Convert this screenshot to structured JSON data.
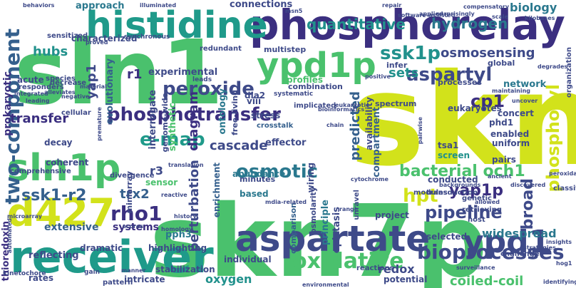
{
  "title": "",
  "words": [
    {
      "text": "skn7",
      "color": "#d2e21b"
    },
    {
      "text": "skn7p",
      "color": "#4ac16d"
    },
    {
      "text": "sln1",
      "color": "#4ac16d"
    },
    {
      "text": "phosphorelay",
      "color": "#3b2f80"
    },
    {
      "text": "receiver",
      "color": "#1f9a8a"
    },
    {
      "text": "histidine",
      "color": "#1f9a8a"
    },
    {
      "text": "sln1p",
      "color": "#4ac16d"
    },
    {
      "text": "aspartate",
      "color": "#3e4a89"
    },
    {
      "text": "ypd1p",
      "color": "#4ac16d"
    },
    {
      "text": "ypd1",
      "color": "#3e4a89"
    },
    {
      "text": "d427",
      "color": "#d2e21b"
    },
    {
      "text": "two-component",
      "color": "#35608d"
    },
    {
      "text": "phosphotransfer",
      "color": "#3b2f80"
    },
    {
      "text": "oxidative",
      "color": "#4ac16d"
    },
    {
      "text": "bioprocesses",
      "color": "#3e4a89"
    },
    {
      "text": "osmotic",
      "color": "#2a788e"
    },
    {
      "text": "aspartyl",
      "color": "#3e4a89"
    },
    {
      "text": "peroxide",
      "color": "#3e4a89"
    },
    {
      "text": "ssk1-r2",
      "color": "#35608d"
    },
    {
      "text": "ssk1p",
      "color": "#21918c"
    },
    {
      "text": "osmosensing",
      "color": "#3e4a89"
    },
    {
      "text": "bacterial och1",
      "color": "#4ac16d"
    },
    {
      "text": "pipeline",
      "color": "#3e4a89"
    },
    {
      "text": "yap1p",
      "color": "#3b2f80"
    },
    {
      "text": "e-map",
      "color": "#1f9a8a"
    },
    {
      "text": "rho1",
      "color": "#3b2f80"
    },
    {
      "text": "hpt",
      "color": "#d2e21b"
    },
    {
      "text": "trx2",
      "color": "#35608d"
    },
    {
      "text": "cascade",
      "color": "#3e4a89"
    },
    {
      "text": "quantitative",
      "color": "#21918c"
    },
    {
      "text": "hydrogen",
      "color": "#2a788e"
    },
    {
      "text": "biology",
      "color": "#2a788e"
    },
    {
      "text": "hubs",
      "color": "#21918c"
    },
    {
      "text": "yap1",
      "color": "#3e4a89"
    },
    {
      "text": "transfer",
      "color": "#3b2f80"
    },
    {
      "text": "predicted",
      "color": "#35608d"
    },
    {
      "text": "phosphoryl",
      "color": "#d2e21b"
    },
    {
      "text": "broad",
      "color": "#3e4a89"
    },
    {
      "text": "widespread",
      "color": "#2a788e"
    },
    {
      "text": "coiled-coil",
      "color": "#4ac16d"
    },
    {
      "text": "redox",
      "color": "#3e4a89"
    },
    {
      "text": "oxygen",
      "color": "#21918c"
    },
    {
      "text": "perturbation",
      "color": "#3e4a89"
    },
    {
      "text": "diagram",
      "color": "#3b2f80"
    },
    {
      "text": "sets",
      "color": "#21918c"
    },
    {
      "text": "cp1",
      "color": "#3b2f80"
    },
    {
      "text": "r1",
      "color": "#3b2f80"
    },
    {
      "text": "r3",
      "color": "#3e4a89"
    },
    {
      "text": "approach",
      "color": "#2a788e"
    },
    {
      "text": "connections",
      "color": "#3e4a89"
    },
    {
      "text": "network",
      "color": "#2a788e"
    },
    {
      "text": "prokaryotic",
      "color": "#3b2f80"
    },
    {
      "text": "thioredoxin",
      "color": "#3b2f80"
    },
    {
      "text": "characterized",
      "color": "#3e4a89"
    },
    {
      "text": "experimental",
      "color": "#3e4a89"
    },
    {
      "text": "evolutionary",
      "color": "#35608d"
    },
    {
      "text": "interrogate",
      "color": "#3e4a89"
    },
    {
      "text": "synthetic",
      "color": "#4ac16d"
    },
    {
      "text": "genome-wide",
      "color": "#3e4a89"
    },
    {
      "text": "ontology",
      "color": "#2a788e"
    },
    {
      "text": "free-living",
      "color": "#3e4a89"
    },
    {
      "text": "extensive",
      "color": "#35608d"
    },
    {
      "text": "systems",
      "color": "#3b2f80"
    },
    {
      "text": "pph3",
      "color": "#2a788e"
    },
    {
      "text": "miniarray",
      "color": "#3e4a89"
    },
    {
      "text": "highlighting",
      "color": "#3e4a89"
    },
    {
      "text": "enrichment",
      "color": "#35608d"
    },
    {
      "text": "intricate",
      "color": "#3e4a89"
    },
    {
      "text": "stabilization",
      "color": "#3e4a89"
    },
    {
      "text": "individual",
      "color": "#3e4a89"
    },
    {
      "text": "epistasis",
      "color": "#3e4a89"
    },
    {
      "text": "principle",
      "color": "#2a788e"
    },
    {
      "text": "wiring",
      "color": "#3e4a89"
    },
    {
      "text": "osmolarity",
      "color": "#3e4a89"
    },
    {
      "text": "comparison",
      "color": "#35608d"
    },
    {
      "text": "minutes",
      "color": "#3e4a89"
    },
    {
      "text": "based",
      "color": "#2a788e"
    },
    {
      "text": "abundance",
      "color": "#2a788e"
    },
    {
      "text": "effector",
      "color": "#3e4a89"
    },
    {
      "text": "stress",
      "color": "#3e4a89"
    },
    {
      "text": "crosstalk",
      "color": "#35608d"
    },
    {
      "text": "viii",
      "color": "#3e4a89"
    },
    {
      "text": "dia2",
      "color": "#3e4a89"
    },
    {
      "text": "compartment",
      "color": "#35608d"
    },
    {
      "text": "availability",
      "color": "#3e4a89"
    },
    {
      "text": "eukaryotes",
      "color": "#3e4a89"
    },
    {
      "text": "phd1",
      "color": "#3e4a89"
    },
    {
      "text": "concert",
      "color": "#3e4a89"
    },
    {
      "text": "enabled",
      "color": "#3e4a89"
    },
    {
      "text": "uniform",
      "color": "#3e4a89"
    },
    {
      "text": "pairs",
      "color": "#3e4a89"
    },
    {
      "text": "screen",
      "color": "#21918c"
    },
    {
      "text": "tsa1",
      "color": "#3e4a89"
    },
    {
      "text": "conducted",
      "color": "#3e4a89"
    },
    {
      "text": "project",
      "color": "#3e4a89"
    },
    {
      "text": "selected",
      "color": "#3e4a89"
    },
    {
      "text": "potential",
      "color": "#3e4a89"
    },
    {
      "text": "profiles",
      "color": "#4ac16d"
    },
    {
      "text": "combination",
      "color": "#3e4a89"
    },
    {
      "text": "processes",
      "color": "#3e4a89"
    },
    {
      "text": "global",
      "color": "#3e4a89"
    },
    {
      "text": "spectrum",
      "color": "#3e4a89"
    },
    {
      "text": "infer",
      "color": "#3e4a89"
    },
    {
      "text": "multistep",
      "color": "#3e4a89"
    },
    {
      "text": "systematic",
      "color": "#3e4a89"
    },
    {
      "text": "sensor",
      "color": "#4ac16d"
    },
    {
      "text": "coherent",
      "color": "#3e4a89"
    },
    {
      "text": "comprehensive",
      "color": "#3e4a89"
    },
    {
      "text": "acute",
      "color": "#3e4a89"
    },
    {
      "text": "reflecting",
      "color": "#3e4a89"
    },
    {
      "text": "dramatic",
      "color": "#3e4a89"
    },
    {
      "text": "rates",
      "color": "#3e4a89"
    },
    {
      "text": "decay",
      "color": "#3e4a89"
    },
    {
      "text": "sensitized",
      "color": "#3e4a89"
    },
    {
      "text": "organization",
      "color": "#3e4a89"
    },
    {
      "text": "challenge",
      "color": "#3e4a89"
    },
    {
      "text": "retrieving",
      "color": "#3e4a89"
    },
    {
      "text": "host",
      "color": "#3e4a89"
    },
    {
      "text": "genetic",
      "color": "#3e4a89"
    },
    {
      "text": "classified",
      "color": "#3e4a89"
    },
    {
      "text": "reactions",
      "color": "#3e4a89"
    },
    {
      "text": "modules",
      "color": "#3e4a89"
    },
    {
      "text": "transduction",
      "color": "#3e4a89"
    },
    {
      "text": "divergence",
      "color": "#3e4a89"
    },
    {
      "text": "cellular",
      "color": "#3e4a89"
    },
    {
      "text": "responders",
      "color": "#3e4a89"
    },
    {
      "text": "decrease",
      "color": "#3e4a89"
    },
    {
      "text": "species",
      "color": "#3e4a89"
    },
    {
      "text": "redundant",
      "color": "#3e4a89"
    },
    {
      "text": "synchronous",
      "color": "#3e4a89"
    },
    {
      "text": "kinetochore",
      "color": "#3e4a89"
    },
    {
      "text": "pattern",
      "color": "#3e4a89"
    },
    {
      "text": "implicated",
      "color": "#3e4a89"
    },
    {
      "text": "leads",
      "color": "#3e4a89"
    },
    {
      "text": "gain",
      "color": "#3e4a89"
    },
    {
      "text": "behaviors",
      "color": "#3e4a89"
    },
    {
      "text": "illuminated",
      "color": "#3e4a89"
    },
    {
      "text": "repair",
      "color": "#3e4a89"
    },
    {
      "text": "compensatory",
      "color": "#3e4a89"
    },
    {
      "text": "kilobases",
      "color": "#3e4a89"
    },
    {
      "text": "scale",
      "color": "#3e4a89"
    },
    {
      "text": "software-assisted",
      "color": "#3e4a89"
    },
    {
      "text": "applied",
      "color": "#3e4a89"
    },
    {
      "text": "surprisingly",
      "color": "#3e4a89"
    },
    {
      "text": "msn5",
      "color": "#3e4a89"
    },
    {
      "text": "proved",
      "color": "#3e4a89"
    },
    {
      "text": "integrated",
      "color": "#3e4a89"
    },
    {
      "text": "alleviates",
      "color": "#3e4a89"
    },
    {
      "text": "negative",
      "color": "#3e4a89"
    },
    {
      "text": "material",
      "color": "#3e4a89"
    },
    {
      "text": "leading",
      "color": "#3e4a89"
    },
    {
      "text": "premature",
      "color": "#3e4a89"
    },
    {
      "text": "degrades",
      "color": "#3e4a89"
    },
    {
      "text": "pairwise",
      "color": "#3e4a89"
    },
    {
      "text": "ancient",
      "color": "#3e4a89"
    },
    {
      "text": "discovered",
      "color": "#3e4a89"
    },
    {
      "text": "unravel",
      "color": "#3e4a89"
    },
    {
      "text": "translation",
      "color": "#3e4a89"
    },
    {
      "text": "reactive",
      "color": "#3e4a89"
    },
    {
      "text": "history",
      "color": "#3e4a89"
    },
    {
      "text": "scores",
      "color": "#3e4a89"
    },
    {
      "text": "homology",
      "color": "#3e4a89"
    },
    {
      "text": "mdia-related",
      "color": "#3e4a89"
    },
    {
      "text": "range",
      "color": "#3e4a89"
    },
    {
      "text": "allowed",
      "color": "#3e4a89"
    },
    {
      "text": "strategies",
      "color": "#3e4a89"
    },
    {
      "text": "insights",
      "color": "#3e4a89"
    },
    {
      "text": "surveillance",
      "color": "#3e4a89"
    },
    {
      "text": "identifying",
      "color": "#3e4a89"
    },
    {
      "text": "environmental",
      "color": "#3e4a89"
    },
    {
      "text": "hog1",
      "color": "#3e4a89"
    },
    {
      "text": "microarray",
      "color": "#3e4a89"
    },
    {
      "text": "automated",
      "color": "#3e4a89"
    },
    {
      "text": "maintaining",
      "color": "#3e4a89"
    },
    {
      "text": "backgrounds",
      "color": "#3e4a89"
    },
    {
      "text": "cytochrome",
      "color": "#3e4a89"
    },
    {
      "text": "uncover",
      "color": "#3e4a89"
    },
    {
      "text": "positive",
      "color": "#3e4a89"
    },
    {
      "text": "bioinformatics",
      "color": "#3e4a89"
    },
    {
      "text": "manner",
      "color": "#3e4a89"
    },
    {
      "text": "peroxidases",
      "color": "#3e4a89"
    },
    {
      "text": "eukaryotic",
      "color": "#3e4a89"
    },
    {
      "text": "chain",
      "color": "#3e4a89"
    }
  ]
}
